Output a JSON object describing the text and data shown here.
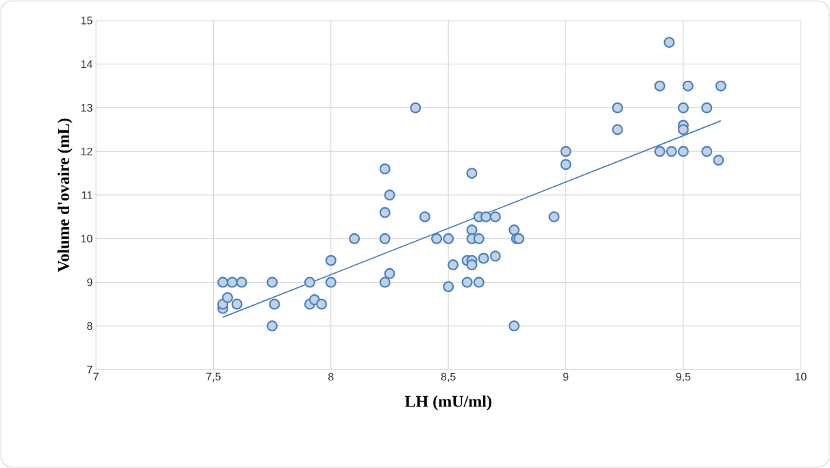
{
  "chart_data": {
    "type": "scatter",
    "xlabel": "LH (mU/ml)",
    "ylabel": "Volume d'ovaire (mL)",
    "xlim": [
      7,
      10
    ],
    "ylim": [
      7,
      15
    ],
    "xticks": [
      7,
      {
        "value": 7.5,
        "label": "7,5"
      },
      8,
      {
        "value": 8.5,
        "label": "8,5"
      },
      9,
      {
        "value": 9.5,
        "label": "9,5"
      },
      10
    ],
    "yticks": [
      7,
      8,
      9,
      10,
      11,
      12,
      13,
      14,
      15
    ],
    "grid": true,
    "marker": "circle",
    "series": [
      {
        "color": "#4a7ebb",
        "x": [
          7.54,
          7.54,
          7.54,
          7.56,
          7.58,
          7.6,
          7.62,
          7.75,
          7.75,
          7.76,
          7.91,
          7.91,
          7.93,
          7.96,
          8.0,
          8.0,
          8.1,
          8.23,
          8.23,
          8.23,
          8.23,
          8.25,
          8.25,
          8.36,
          8.4,
          8.45,
          8.5,
          8.5,
          8.52,
          8.58,
          8.58,
          8.6,
          8.6,
          8.6,
          8.6,
          8.6,
          8.63,
          8.63,
          8.63,
          8.65,
          8.66,
          8.7,
          8.7,
          8.78,
          8.78,
          8.79,
          8.8,
          8.95,
          9.0,
          9.0,
          9.22,
          9.22,
          9.44,
          9.4,
          9.4,
          9.45,
          9.5,
          9.5,
          9.5,
          9.5,
          9.52,
          9.6,
          9.6,
          9.65,
          9.66
        ],
        "values": [
          8.4,
          8.5,
          9.0,
          8.65,
          9.0,
          8.5,
          9.0,
          9.0,
          8.0,
          8.5,
          9.0,
          8.5,
          8.6,
          8.5,
          9.5,
          9.0,
          10.0,
          11.6,
          10.6,
          10.0,
          9.0,
          11.0,
          9.2,
          13.0,
          10.5,
          10.0,
          10.0,
          8.9,
          9.4,
          9.5,
          9.0,
          11.5,
          10.2,
          10.0,
          9.5,
          9.4,
          10.5,
          10.0,
          9.0,
          9.55,
          10.5,
          10.5,
          9.6,
          10.2,
          8.0,
          10.0,
          10.0,
          10.5,
          12.0,
          11.7,
          13.0,
          12.5,
          14.5,
          13.5,
          12.0,
          12.0,
          13.0,
          12.6,
          12.5,
          12.0,
          13.5,
          13.0,
          12.0,
          11.8,
          13.5
        ]
      },
      {
        "type": "line",
        "color": "#4a7ebb",
        "marker": "none",
        "x": [
          7.54,
          9.66
        ],
        "values": [
          8.2,
          12.7
        ]
      }
    ]
  }
}
